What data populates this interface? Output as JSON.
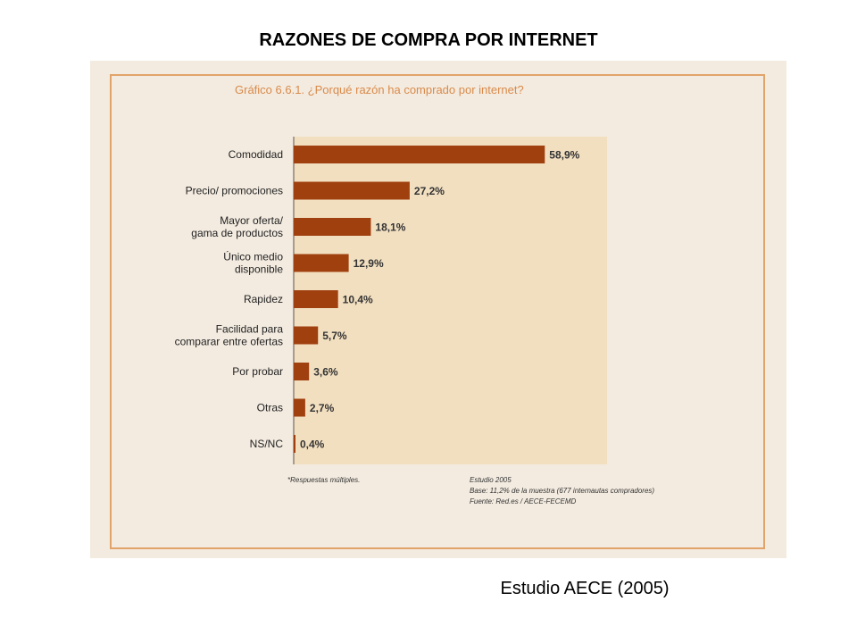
{
  "slide": {
    "title": "RAZONES DE COMPRA POR INTERNET",
    "source_note": "Estudio AECE (2005)"
  },
  "chart_data": {
    "type": "bar",
    "orientation": "horizontal",
    "title": "Gráfico 6.6.1. ¿Porqué razón ha comprado por internet?",
    "categories": [
      [
        "Comodidad"
      ],
      [
        "Precio/ promociones"
      ],
      [
        "Mayor oferta/",
        "gama de productos"
      ],
      [
        "Único medio",
        "disponible"
      ],
      [
        "Rapidez"
      ],
      [
        "Facilidad para",
        "comparar entre ofertas"
      ],
      [
        "Por probar"
      ],
      [
        "Otras"
      ],
      [
        "NS/NC"
      ]
    ],
    "values": [
      58.9,
      27.2,
      18.1,
      12.9,
      10.4,
      5.7,
      3.6,
      2.7,
      0.4
    ],
    "value_labels": [
      "58,9%",
      "27,2%",
      "18,1%",
      "12,9%",
      "10,4%",
      "5,7%",
      "3,6%",
      "2,7%",
      "0,4%"
    ],
    "xlim": [
      0,
      73.5
    ],
    "footnote_left": "*Respuestas múltiples.",
    "footnote_right": [
      "Estudio 2005",
      "Base: 11,2% de la muestra  (677 internautas compradores)",
      "Fuente: Red.es / AECE-FECEMD"
    ],
    "colors": {
      "bar": "#a0400f",
      "plot_bg": "#f2dfc0",
      "frame": "#e2a36a",
      "title": "#d98a4a",
      "panel": "#f3ebe0"
    }
  }
}
